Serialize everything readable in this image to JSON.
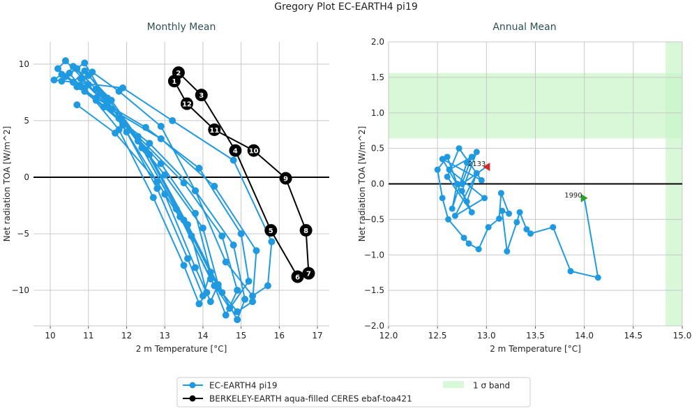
{
  "title": "Gregory Plot EC-EARTH4 pi19",
  "colors": {
    "model": "#1f9ae0",
    "obs": "#000000",
    "band": "#c8f5c8",
    "start_marker": "#2ca02c",
    "end_marker": "#d62728",
    "subtitle": "#2f4f4f"
  },
  "legend": {
    "placement": "bottom-center",
    "items": [
      {
        "label": "EC-EARTH4 pi19",
        "kind": "line-marker",
        "color": "#1f9ae0"
      },
      {
        "label": "BERKELEY-EARTH aqua-filled CERES ebaf-toa421",
        "kind": "line-marker",
        "color": "#000000"
      },
      {
        "label": "1 σ band",
        "kind": "patch",
        "color": "#c8f5c8"
      }
    ]
  },
  "chart_data": [
    {
      "type": "line",
      "title": "Monthly Mean",
      "xlabel": "2 m Temperature [°C]",
      "ylabel": "Net radiation TOA [W/m^2]",
      "xlim": [
        9.56,
        17.31
      ],
      "ylim": [
        -13.15,
        11.97
      ],
      "xticks": [
        "10",
        "11",
        "12",
        "13",
        "14",
        "15",
        "16",
        "17"
      ],
      "yticks": [
        "10",
        "5",
        "0",
        "−5",
        "−10"
      ],
      "grid": true,
      "zero_line": 0,
      "series": [
        {
          "name": "EC-EARTH4 pi19",
          "points": [
            [
              10.3,
              8.5
            ],
            [
              10.6,
              9.8
            ],
            [
              11.2,
              7.8
            ],
            [
              12.0,
              4.0
            ],
            [
              13.0,
              -1.5
            ],
            [
              13.8,
              -8.0
            ],
            [
              14.2,
              -11.0
            ],
            [
              14.4,
              -9.5
            ],
            [
              14.0,
              -4.5
            ],
            [
              13.0,
              0.2
            ],
            [
              11.9,
              4.8
            ],
            [
              10.9,
              7.6
            ],
            [
              10.5,
              9.2
            ],
            [
              10.9,
              10.1
            ],
            [
              11.4,
              7.2
            ],
            [
              12.4,
              2.6
            ],
            [
              13.4,
              -3.5
            ],
            [
              14.3,
              -9.6
            ],
            [
              14.6,
              -12.2
            ],
            [
              14.9,
              -10.0
            ],
            [
              14.5,
              -5.2
            ],
            [
              13.5,
              -0.5
            ],
            [
              12.3,
              3.6
            ],
            [
              11.2,
              6.8
            ],
            [
              10.2,
              9.6
            ],
            [
              10.4,
              10.3
            ],
            [
              11.0,
              8.2
            ],
            [
              11.9,
              4.6
            ],
            [
              12.8,
              -1.0
            ],
            [
              13.6,
              -7.2
            ],
            [
              14.0,
              -10.5
            ],
            [
              14.2,
              -8.4
            ],
            [
              13.8,
              -3.2
            ],
            [
              12.9,
              1.2
            ],
            [
              11.8,
              5.2
            ],
            [
              10.8,
              8.0
            ],
            [
              10.7,
              8.0
            ],
            [
              11.0,
              9.0
            ],
            [
              11.6,
              6.8
            ],
            [
              12.6,
              2.0
            ],
            [
              13.6,
              -4.2
            ],
            [
              14.5,
              -10.2
            ],
            [
              14.9,
              -12.6
            ],
            [
              15.1,
              -10.8
            ],
            [
              14.8,
              -6.0
            ],
            [
              13.8,
              -1.2
            ],
            [
              12.6,
              3.0
            ],
            [
              11.4,
              6.2
            ],
            [
              10.4,
              8.9
            ],
            [
              10.7,
              9.6
            ],
            [
              11.3,
              7.4
            ],
            [
              12.3,
              3.2
            ],
            [
              13.3,
              -2.8
            ],
            [
              14.2,
              -9.0
            ],
            [
              14.7,
              -11.6
            ],
            [
              15.2,
              -9.2
            ],
            [
              15.0,
              -5.0
            ],
            [
              13.9,
              0.8
            ],
            [
              12.5,
              4.4
            ],
            [
              11.2,
              7.0
            ],
            [
              10.6,
              8.4
            ],
            [
              10.9,
              9.4
            ],
            [
              11.5,
              7.0
            ],
            [
              12.5,
              2.4
            ],
            [
              13.5,
              -3.8
            ],
            [
              14.4,
              -9.8
            ],
            [
              14.9,
              -11.9
            ],
            [
              15.3,
              -11.0
            ],
            [
              15.4,
              -6.5
            ],
            [
              14.3,
              -0.8
            ],
            [
              12.9,
              3.4
            ],
            [
              11.6,
              6.0
            ],
            [
              10.8,
              8.7
            ],
            [
              11.1,
              9.3
            ],
            [
              11.8,
              7.6
            ],
            [
              12.9,
              4.5
            ],
            [
              13.8,
              -1.2
            ],
            [
              14.6,
              -7.5
            ],
            [
              15.3,
              -10.5
            ],
            [
              15.7,
              -9.6
            ],
            [
              15.8,
              -5.7
            ],
            [
              14.8,
              1.5
            ],
            [
              13.2,
              5.0
            ],
            [
              11.9,
              7.9
            ],
            [
              10.1,
              8.6
            ],
            [
              10.3,
              9.1
            ],
            [
              10.9,
              7.9
            ],
            [
              11.8,
              4.2
            ],
            [
              12.7,
              -1.8
            ],
            [
              13.5,
              -7.8
            ],
            [
              13.9,
              -11.2
            ],
            [
              14.1,
              -10.2
            ],
            [
              13.7,
              -5.2
            ],
            [
              12.8,
              -0.4
            ],
            [
              11.7,
              3.9
            ],
            [
              10.7,
              6.4
            ]
          ]
        },
        {
          "name": "BERKELEY-EARTH aqua-filled CERES ebaf-toa421",
          "points": [
            [
              13.25,
              8.5
            ],
            [
              13.36,
              9.25
            ],
            [
              13.96,
              7.27
            ],
            [
              14.85,
              2.36
            ],
            [
              15.78,
              -4.7
            ],
            [
              16.48,
              -8.8
            ],
            [
              16.77,
              -8.5
            ],
            [
              16.7,
              -4.7
            ],
            [
              16.17,
              -0.1
            ],
            [
              15.33,
              2.36
            ],
            [
              14.3,
              4.2
            ],
            [
              13.58,
              6.5
            ]
          ],
          "labels": [
            "1",
            "2",
            "3",
            "4",
            "5",
            "6",
            "7",
            "8",
            "9",
            "10",
            "11",
            "12"
          ],
          "closed": true
        }
      ]
    },
    {
      "type": "line",
      "title": "Annual Mean",
      "xlabel": "2 m Temperature [°C]",
      "ylabel": "Net radiation TOA [W/m^2]",
      "xlim": [
        12.0,
        15.0
      ],
      "ylim": [
        -2.0,
        2.0
      ],
      "xticks": [
        "12.0",
        "12.5",
        "13.0",
        "13.5",
        "14.0",
        "14.5",
        "15.0"
      ],
      "yticks": [
        "2.0",
        "1.5",
        "1.0",
        "0.5",
        "0.0",
        "−0.5",
        "−1.0",
        "−1.5",
        "−2.0"
      ],
      "grid": true,
      "zero_line": 0,
      "obs_band": {
        "x": [
          14.83,
          15.17
        ],
        "y": [
          0.64,
          1.56
        ]
      },
      "annotations": [
        {
          "text": "1990",
          "at": [
            14.0,
            -0.2
          ]
        },
        {
          "text": "2133",
          "at": [
            13.0,
            0.24
          ]
        }
      ],
      "series": [
        {
          "name": "EC-EARTH4 pi19",
          "points": [
            [
              14.0,
              -0.2
            ],
            [
              14.14,
              -1.32
            ],
            [
              13.86,
              -1.23
            ],
            [
              13.68,
              -0.61
            ],
            [
              13.45,
              -0.7
            ],
            [
              13.41,
              -0.64
            ],
            [
              13.34,
              -0.4
            ],
            [
              13.31,
              -0.54
            ],
            [
              13.21,
              -0.95
            ],
            [
              13.16,
              -0.38
            ],
            [
              13.23,
              -0.42
            ],
            [
              13.15,
              -0.13
            ],
            [
              13.13,
              -0.49
            ],
            [
              13.02,
              -0.61
            ],
            [
              12.92,
              -0.92
            ],
            [
              12.82,
              -0.84
            ],
            [
              12.77,
              -0.76
            ],
            [
              12.61,
              -0.5
            ],
            [
              12.55,
              -0.2
            ],
            [
              12.5,
              0.2
            ],
            [
              12.6,
              0.38
            ],
            [
              12.7,
              0.0
            ],
            [
              12.65,
              -0.35
            ],
            [
              12.8,
              0.3
            ],
            [
              12.9,
              0.45
            ],
            [
              12.75,
              -0.1
            ],
            [
              12.85,
              -0.4
            ],
            [
              12.6,
              0.1
            ],
            [
              12.72,
              0.5
            ],
            [
              12.95,
              0.05
            ],
            [
              12.55,
              0.35
            ],
            [
              12.8,
              -0.25
            ],
            [
              12.9,
              0.15
            ],
            [
              12.68,
              -0.45
            ],
            [
              12.98,
              -0.2
            ],
            [
              12.62,
              0.2
            ],
            [
              12.85,
              0.38
            ],
            [
              12.75,
              0.0
            ],
            [
              13.0,
              0.24
            ]
          ]
        }
      ]
    }
  ]
}
